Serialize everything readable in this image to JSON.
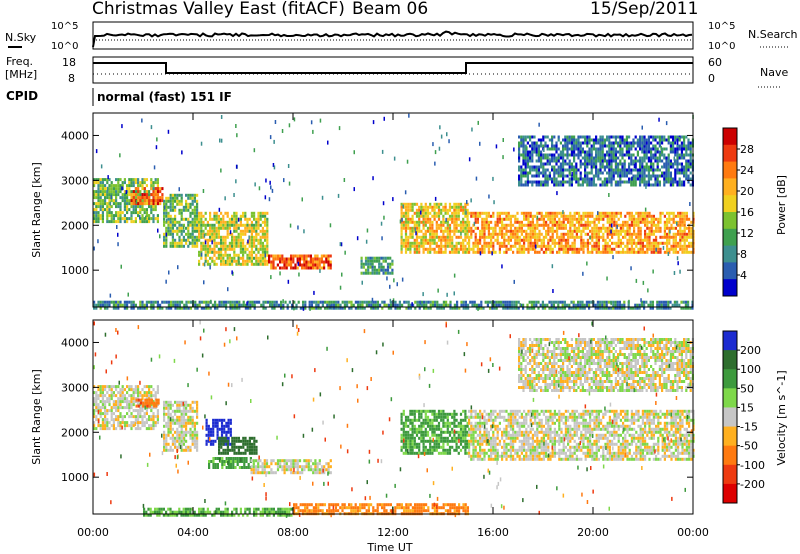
{
  "header": {
    "station": "Christmas Valley East (fitACF)",
    "beam": "Beam 06",
    "date": "15/Sep/2011"
  },
  "top_panels": {
    "nsky_label": "N.Sky",
    "nsearch_label": "N.Search",
    "noise_ticks": [
      "10^5",
      "10^0"
    ],
    "freq_label_1": "Freq.",
    "freq_label_2": "[MHz]",
    "freq_ticks": [
      "18",
      "8"
    ],
    "nave_label": "Nave",
    "nave_ticks": [
      "60",
      "0"
    ],
    "cpid_label": "CPID",
    "cpid_text": "normal (fast) 151 IF"
  },
  "chart_data": [
    {
      "type": "heatmap",
      "panel": "power",
      "ylabel": "Slant Range [km]",
      "xlabel": "Time UT",
      "x_ticks": [
        "00:00",
        "04:00",
        "08:00",
        "12:00",
        "16:00",
        "20:00",
        "00:00"
      ],
      "y_ticks": [
        1000,
        2000,
        3000,
        4000
      ],
      "ylim": [
        180,
        4500
      ],
      "colorbar": {
        "label": "Power [dB]",
        "ticks": [
          "4",
          "8",
          "12",
          "16",
          "20",
          "24",
          "28"
        ],
        "colors": [
          "#0000cc",
          "#2a5db0",
          "#3d8f8f",
          "#3fa04f",
          "#7cc230",
          "#f0d020",
          "#ffb020",
          "#ff7a10",
          "#ee3a10",
          "#cc0000"
        ]
      },
      "regions": [
        {
          "t0": 0.0,
          "t1": 2.6,
          "r0": 2050,
          "r1": 3050,
          "value": 14
        },
        {
          "t0": 1.5,
          "t1": 2.8,
          "r0": 2500,
          "r1": 2850,
          "value": 26
        },
        {
          "t0": 2.8,
          "t1": 4.2,
          "r0": 1550,
          "r1": 2700,
          "value": 14
        },
        {
          "t0": 4.2,
          "t1": 7.0,
          "r0": 1150,
          "r1": 2300,
          "value": 18
        },
        {
          "t0": 7.0,
          "t1": 9.5,
          "r0": 1050,
          "r1": 1350,
          "value": 26
        },
        {
          "t0": 10.7,
          "t1": 12.0,
          "r0": 950,
          "r1": 1300,
          "value": 12
        },
        {
          "t0": 12.3,
          "t1": 15.0,
          "r0": 1400,
          "r1": 2500,
          "value": 20
        },
        {
          "t0": 15.0,
          "t1": 24.0,
          "r0": 1400,
          "r1": 2300,
          "value": 22
        },
        {
          "t0": 17.0,
          "t1": 24.0,
          "r0": 2900,
          "r1": 4000,
          "value": 8
        },
        {
          "t0": 0.0,
          "t1": 24.0,
          "r0": 180,
          "r1": 320,
          "value": 10
        }
      ]
    },
    {
      "type": "heatmap",
      "panel": "velocity",
      "ylabel": "Slant Range [km]",
      "xlabel": "Time UT",
      "x_ticks": [
        "00:00",
        "04:00",
        "08:00",
        "12:00",
        "16:00",
        "20:00",
        "00:00"
      ],
      "y_ticks": [
        1000,
        2000,
        3000,
        4000
      ],
      "ylim": [
        180,
        4500
      ],
      "colorbar": {
        "label": "Velocity [m s^-1]",
        "ticks": [
          "200",
          "100",
          "50",
          "15",
          "-15",
          "-50",
          "-100",
          "-200"
        ],
        "colors": [
          "#1c2bd0",
          "#2e6e2e",
          "#3d9a3d",
          "#7ed84a",
          "#c6c6c6",
          "#ffb020",
          "#ff7a10",
          "#ee3a10",
          "#dd0000"
        ]
      },
      "regions": [
        {
          "t0": 0.0,
          "t1": 2.6,
          "r0": 2050,
          "r1": 3050,
          "value": 0
        },
        {
          "t0": 1.7,
          "t1": 2.6,
          "r0": 2550,
          "r1": 2750,
          "value": -60
        },
        {
          "t0": 2.8,
          "t1": 4.2,
          "r0": 1600,
          "r1": 2700,
          "value": 0
        },
        {
          "t0": 4.5,
          "t1": 5.5,
          "r0": 1700,
          "r1": 2300,
          "value": 180
        },
        {
          "t0": 5.0,
          "t1": 6.5,
          "r0": 1500,
          "r1": 1900,
          "value": 120
        },
        {
          "t0": 4.6,
          "t1": 6.3,
          "r0": 1200,
          "r1": 1450,
          "value": 40
        },
        {
          "t0": 6.3,
          "t1": 9.5,
          "r0": 1100,
          "r1": 1400,
          "value": 0
        },
        {
          "t0": 12.3,
          "t1": 15.0,
          "r0": 1500,
          "r1": 2500,
          "value": 40
        },
        {
          "t0": 15.0,
          "t1": 24.0,
          "r0": 1400,
          "r1": 2500,
          "value": 0
        },
        {
          "t0": 17.0,
          "t1": 24.0,
          "r0": 2900,
          "r1": 4100,
          "value": 0
        },
        {
          "t0": 2.0,
          "t1": 8.0,
          "r0": 180,
          "r1": 320,
          "value": 30
        },
        {
          "t0": 8.0,
          "t1": 15.0,
          "r0": 180,
          "r1": 420,
          "value": -40
        }
      ]
    }
  ]
}
